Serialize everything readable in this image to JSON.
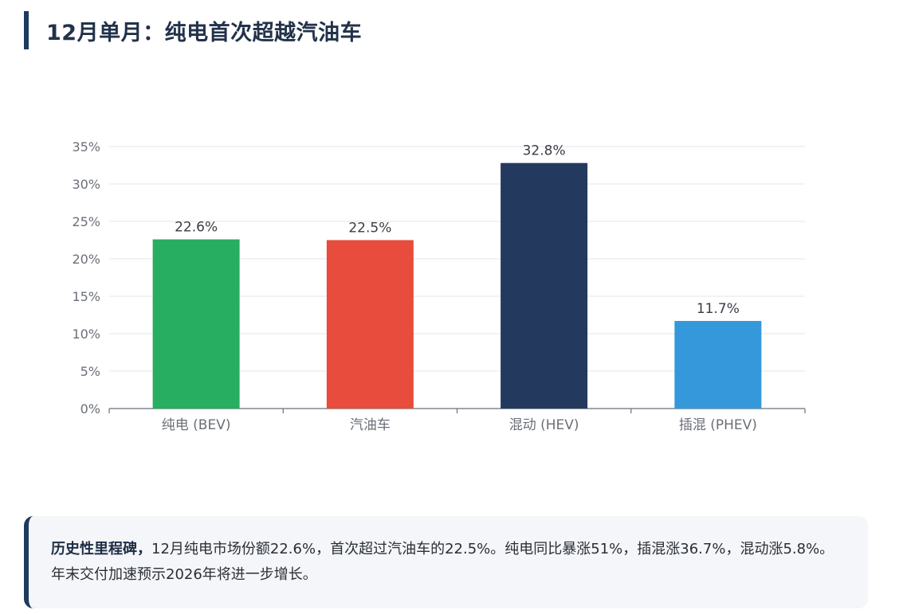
{
  "title": "12月单月：纯电首次超越汽油车",
  "chart_data": {
    "type": "bar",
    "categories": [
      "纯电 (BEV)",
      "汽油车",
      "混动 (HEV)",
      "插混 (PHEV)"
    ],
    "values": [
      22.6,
      22.5,
      32.8,
      11.7
    ],
    "data_labels": [
      "22.6%",
      "22.5%",
      "32.8%",
      "11.7%"
    ],
    "colors": [
      "#27ae60",
      "#e74c3c",
      "#233a5e",
      "#3498db"
    ],
    "ylim": [
      0,
      35
    ],
    "yticks": [
      0,
      5,
      10,
      15,
      20,
      25,
      30,
      35
    ],
    "ytick_labels": [
      "0%",
      "5%",
      "10%",
      "15%",
      "20%",
      "25%",
      "30%",
      "35%"
    ],
    "grid": true,
    "title": "",
    "xlabel": "",
    "ylabel": ""
  },
  "note": {
    "bold": "历史性里程碑，",
    "text": "12月纯电市场份额22.6%，首次超过汽油车的22.5%。纯电同比暴涨51%，插混涨36.7%，混动涨5.8%。年末交付加速预示2026年将进一步增长。"
  }
}
